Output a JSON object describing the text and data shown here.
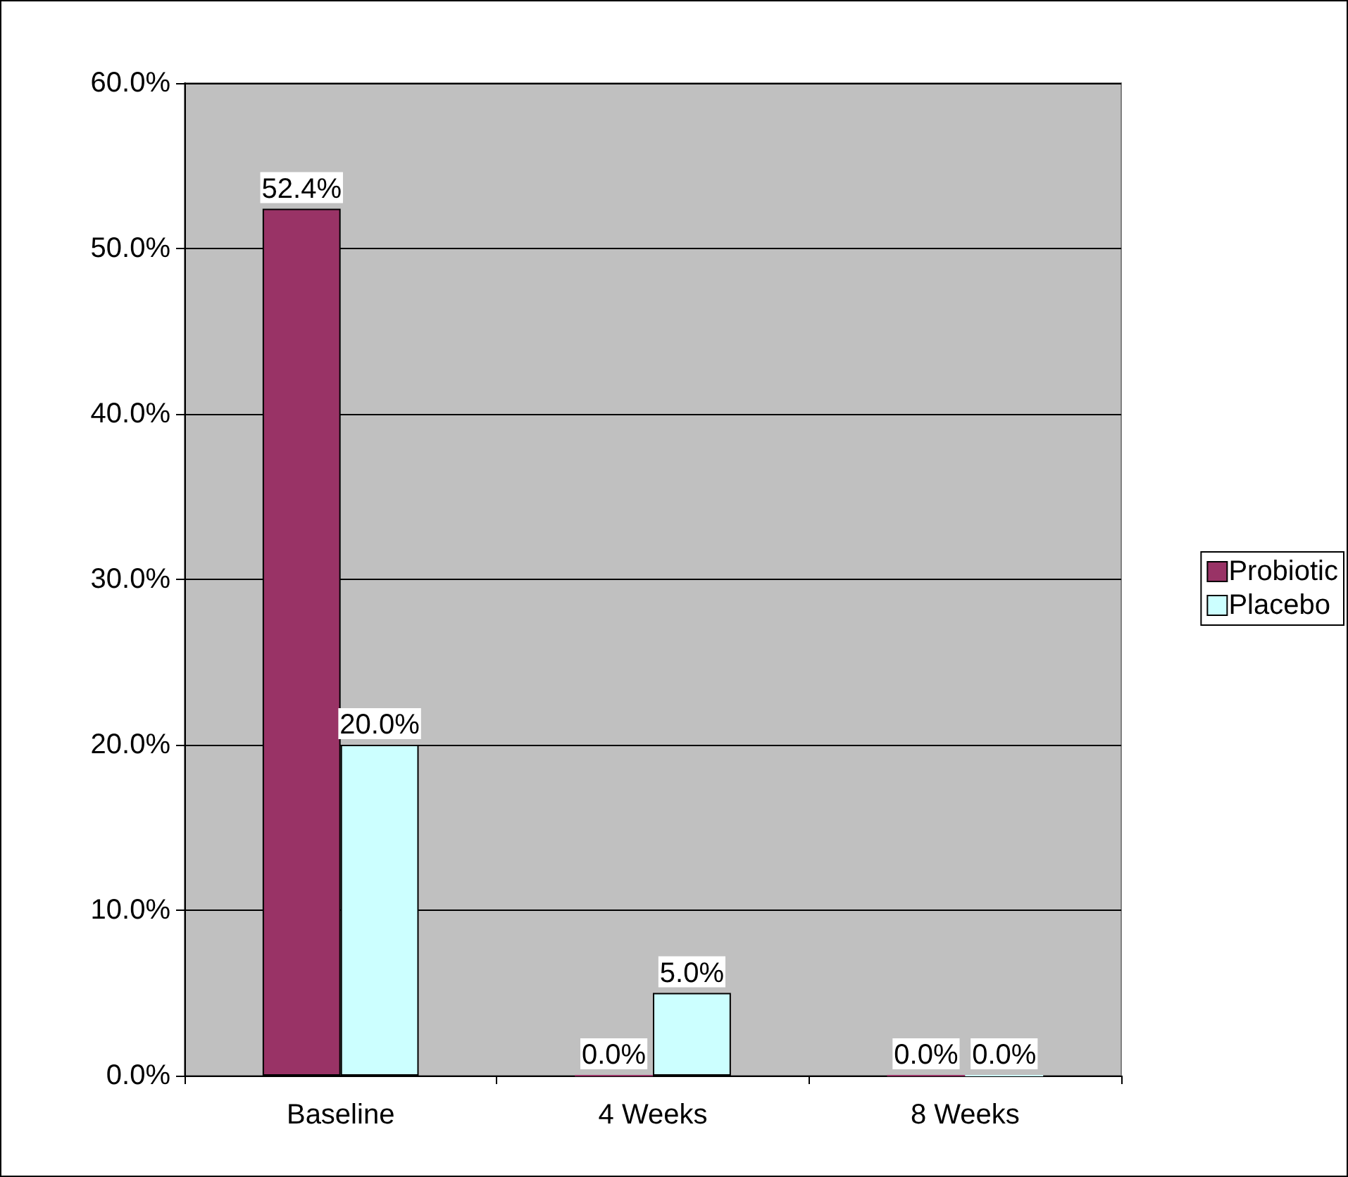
{
  "chart_data": {
    "type": "bar",
    "categories": [
      "Baseline",
      "4 Weeks",
      "8 Weeks"
    ],
    "series": [
      {
        "name": "Probiotic",
        "color": "#993366",
        "values": [
          52.4,
          0,
          0
        ],
        "value_labels": [
          "52.4%",
          "0.0%",
          "0.0%"
        ]
      },
      {
        "name": "Placebo",
        "color": "#ccffff",
        "values": [
          20,
          5,
          0
        ],
        "value_labels": [
          "20.0%",
          "5.0%",
          "0.0%"
        ]
      }
    ],
    "ylim": [
      0,
      60
    ],
    "yticks": [
      {
        "value": 0,
        "label": "0.0%"
      },
      {
        "value": 10,
        "label": "10.0%"
      },
      {
        "value": 20,
        "label": "20.0%"
      },
      {
        "value": 30,
        "label": "30.0%"
      },
      {
        "value": 40,
        "label": "40.0%"
      },
      {
        "value": 50,
        "label": "50.0%"
      },
      {
        "value": 60,
        "label": "60.0%"
      }
    ],
    "grid": "y",
    "legend": "right"
  }
}
